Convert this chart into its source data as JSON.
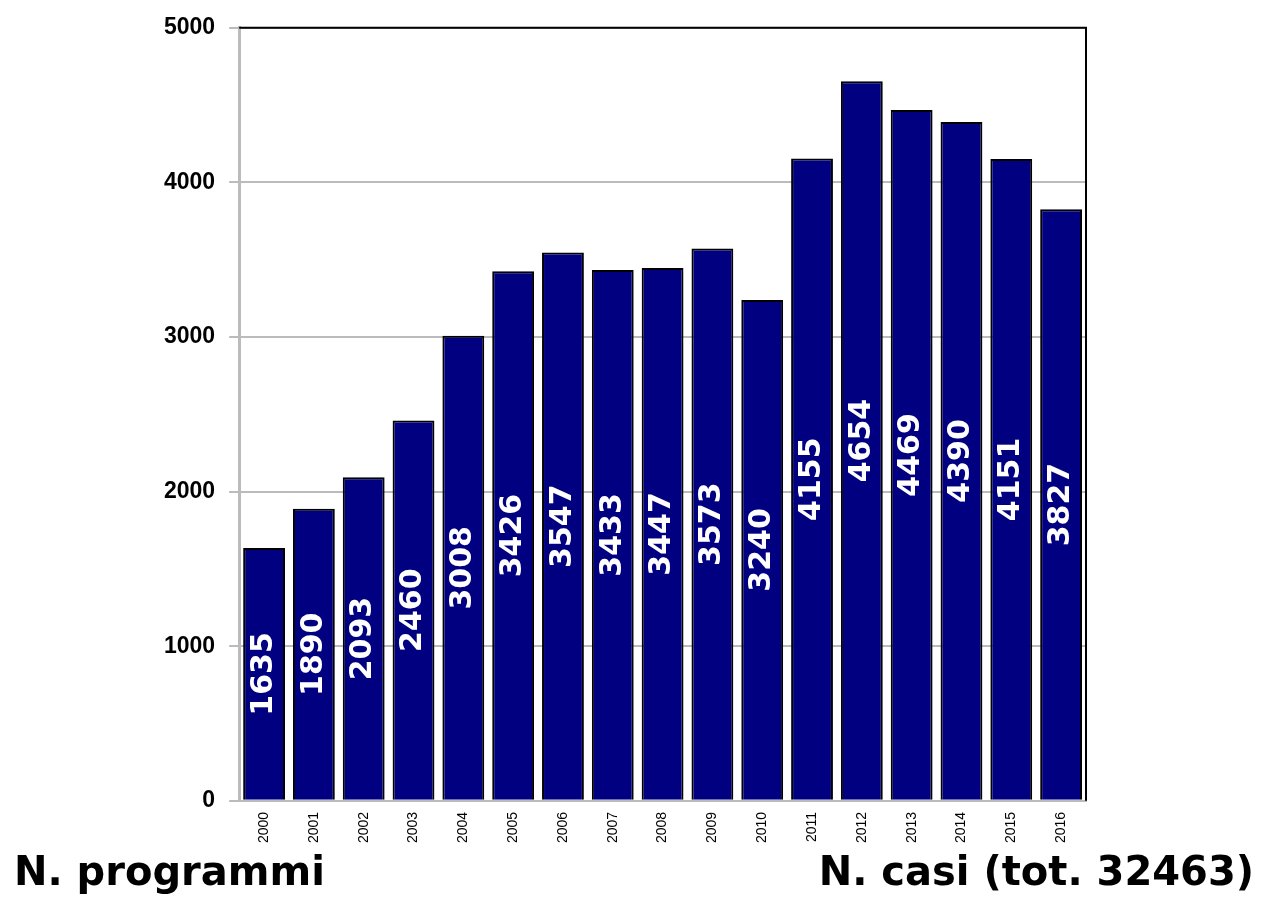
{
  "chart_data": {
    "type": "bar",
    "categories": [
      "2000",
      "2001",
      "2002",
      "2003",
      "2004",
      "2005",
      "2006",
      "2007",
      "2008",
      "2009",
      "2010",
      "2011",
      "2012",
      "2013",
      "2014",
      "2015",
      "2016"
    ],
    "values": [
      1635,
      1890,
      2093,
      2460,
      3008,
      3426,
      3547,
      3433,
      3447,
      3573,
      3240,
      4155,
      4654,
      4469,
      4390,
      4151,
      3827
    ],
    "color": "#000080",
    "ylim": [
      0,
      5000
    ],
    "yticks": [
      0,
      1000,
      2000,
      3000,
      4000,
      5000
    ],
    "grid": "y",
    "data_labels": true,
    "annotations": [
      "N. programmi",
      "N. casi (tot. 32463)"
    ]
  }
}
